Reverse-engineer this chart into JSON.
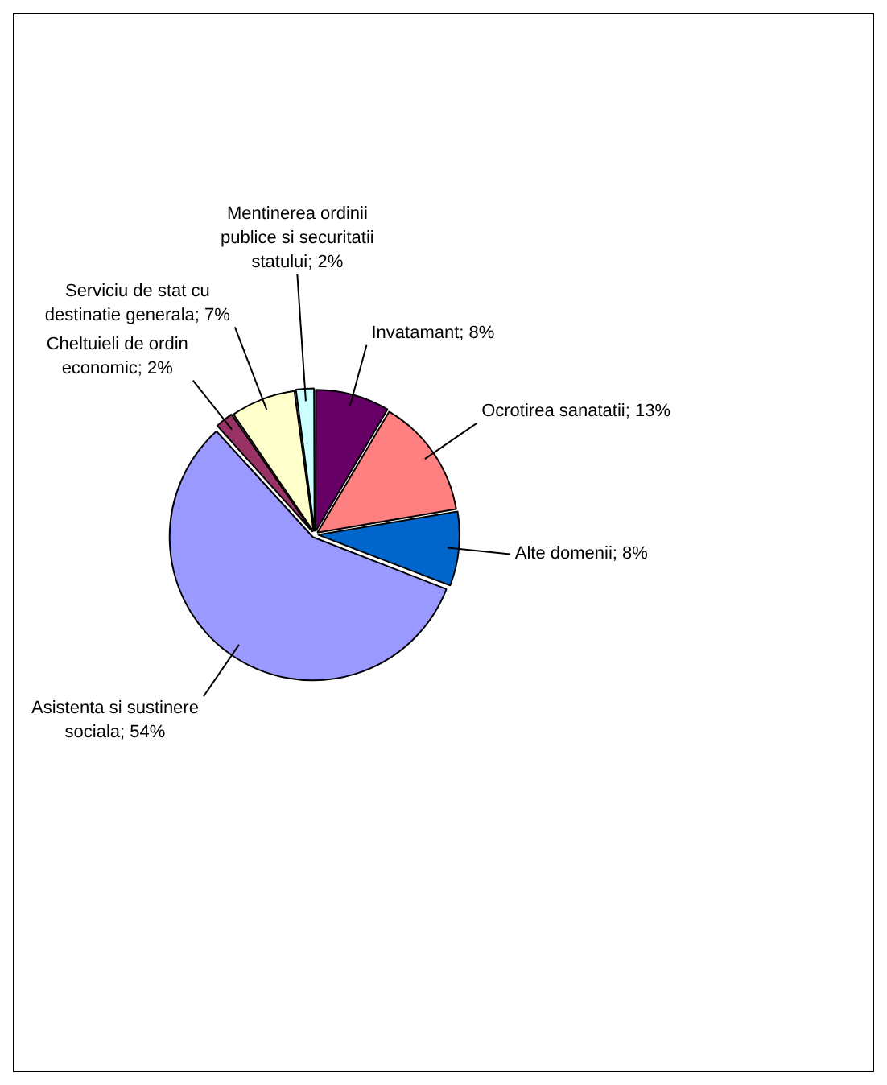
{
  "chart_data": {
    "type": "pie",
    "categories": [
      "Invatamant",
      "Ocrotirea sanatatii",
      "Alte domenii",
      "Asistenta si sustinere sociala",
      "Cheltuieli de ordin economic",
      "Serviciu de stat cu destinatie generala",
      "Mentinerea ordinii publice si securitatii statului"
    ],
    "values": [
      8,
      13,
      8,
      54,
      2,
      7,
      2
    ],
    "value_labels": [
      "8%",
      "13%",
      "8%",
      "54%",
      "2%",
      "7%",
      "2%"
    ],
    "colors": [
      "#660066",
      "#ff8080",
      "#0066cc",
      "#9999ff",
      "#993366",
      "#ffffcc",
      "#ccffff"
    ],
    "legend": false
  }
}
